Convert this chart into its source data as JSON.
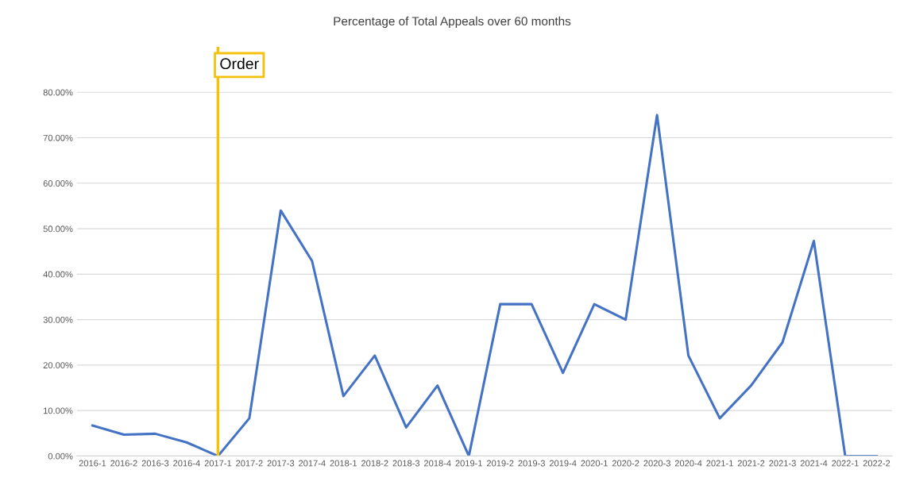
{
  "chart_data": {
    "type": "line",
    "title": "Percentage of Total Appeals over 60 months",
    "categories": [
      "2016-1",
      "2016-2",
      "2016-3",
      "2016-4",
      "2017-1",
      "2017-2",
      "2017-3",
      "2017-4",
      "2018-1",
      "2018-2",
      "2018-3",
      "2018-4",
      "2019-1",
      "2019-2",
      "2019-3",
      "2019-4",
      "2020-1",
      "2020-2",
      "2020-3",
      "2020-4",
      "2021-1",
      "2021-2",
      "2021-3",
      "2021-4",
      "2022-1",
      "2022-2"
    ],
    "series": [
      {
        "color": "#4472c4",
        "values": [
          6.7,
          4.7,
          4.9,
          3.0,
          0,
          8.3,
          54.0,
          42.9,
          13.2,
          22.1,
          6.3,
          15.5,
          0,
          33.4,
          33.4,
          18.3,
          33.4,
          30.0,
          75.0,
          22.1,
          8.3,
          15.5,
          25.0,
          47.3,
          0,
          0
        ]
      }
    ],
    "ylim": [
      0,
      90
    ],
    "yticks": [
      {
        "value": 0,
        "label": "0.00%"
      },
      {
        "value": 10,
        "label": "10.00%"
      },
      {
        "value": 20,
        "label": "20.00%"
      },
      {
        "value": 30,
        "label": "30.00%"
      },
      {
        "value": 40,
        "label": "40.00%"
      },
      {
        "value": 50,
        "label": "50.00%"
      },
      {
        "value": 60,
        "label": "60.00%"
      },
      {
        "value": 70,
        "label": "70.00%"
      },
      {
        "value": 80,
        "label": "80.00%"
      }
    ],
    "grid": "y",
    "marker": "none",
    "line_style": "solid",
    "ref_lines": [
      {
        "axis": "x",
        "value": "2017-1",
        "label": "Order",
        "color": "#f4c20d"
      }
    ]
  }
}
